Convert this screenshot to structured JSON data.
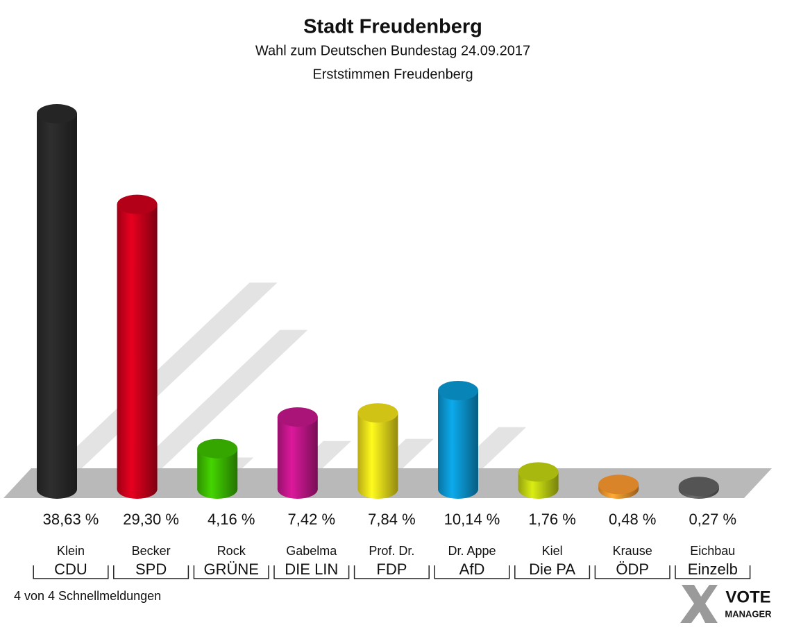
{
  "chart_data": {
    "type": "bar",
    "title": "Stadt Freudenberg",
    "subtitle": "Wahl zum Deutschen Bundestag 24.09.2017",
    "subtitle2": "Erststimmen Freudenberg",
    "candidates": [
      "Klein",
      "Becker",
      "Rock",
      "Gabelma",
      "Prof. Dr.",
      "Dr. Appe",
      "Kiel",
      "Krause",
      "Eichbau"
    ],
    "categories": [
      "CDU",
      "SPD",
      "GRÜNE",
      "DIE LIN",
      "FDP",
      "AfD",
      "Die PA",
      "ÖDP",
      "Einzelb"
    ],
    "values": [
      38.63,
      29.3,
      4.16,
      7.42,
      7.84,
      10.14,
      1.76,
      0.48,
      0.27
    ],
    "value_labels": [
      "38,63 %",
      "29,30 %",
      "4,16 %",
      "7,42 %",
      "7,84 %",
      "10,14 %",
      "1,76 %",
      "0,48 %",
      "0,27 %"
    ],
    "colors": [
      "#2b2b2b",
      "#d3001c",
      "#3ec200",
      "#c8178e",
      "#f6e41a",
      "#0b9bd7",
      "#c6d812",
      "#ff9b30",
      "#636363"
    ],
    "footer": "4 von 4 Schnellmeldungen",
    "logo": [
      "VOTE",
      "MANAGER"
    ]
  }
}
